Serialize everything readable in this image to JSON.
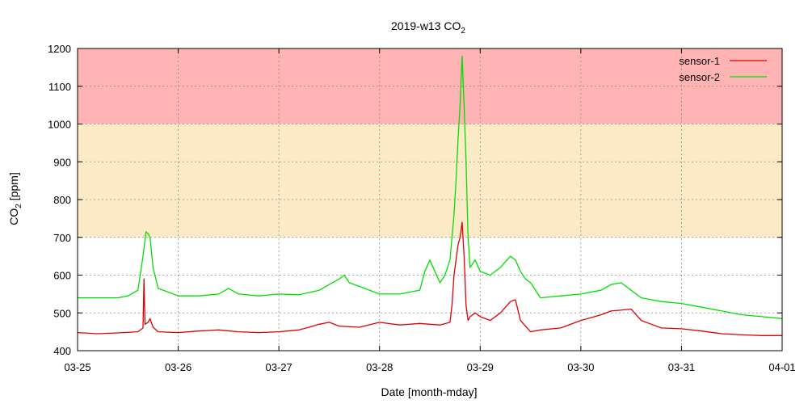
{
  "chart_data": {
    "type": "line",
    "title_main": "2019-w13 CO",
    "title_sub": "2",
    "xlabel": "Date [month-mday]",
    "ylabel_main": "CO",
    "ylabel_sub": "2",
    "ylabel_unit": " [ppm]",
    "ylim": [
      400,
      1200
    ],
    "yticks": [
      400,
      500,
      600,
      700,
      800,
      900,
      1000,
      1100,
      1200
    ],
    "xlim": [
      0,
      7
    ],
    "xticks": [
      {
        "pos": 0,
        "label": "03-25"
      },
      {
        "pos": 1,
        "label": "03-26"
      },
      {
        "pos": 2,
        "label": "03-27"
      },
      {
        "pos": 3,
        "label": "03-28"
      },
      {
        "pos": 4,
        "label": "03-29"
      },
      {
        "pos": 5,
        "label": "03-30"
      },
      {
        "pos": 6,
        "label": "03-31"
      },
      {
        "pos": 7,
        "label": "04-01"
      }
    ],
    "grid": true,
    "legend_position": "top-right",
    "bands": [
      {
        "from": 700,
        "to": 1000,
        "color": "#fdebc8"
      },
      {
        "from": 1000,
        "to": 1200,
        "color": "#ffb3b3"
      }
    ],
    "series": [
      {
        "name": "sensor-1",
        "color": "#e00000",
        "x": [
          0,
          0.2,
          0.4,
          0.6,
          0.65,
          0.66,
          0.67,
          0.7,
          0.72,
          0.75,
          0.8,
          1.0,
          1.2,
          1.4,
          1.6,
          1.8,
          2.0,
          2.2,
          2.3,
          2.4,
          2.5,
          2.6,
          2.8,
          3.0,
          3.2,
          3.4,
          3.5,
          3.6,
          3.7,
          3.72,
          3.74,
          3.76,
          3.78,
          3.8,
          3.82,
          3.84,
          3.86,
          3.88,
          3.9,
          3.95,
          4.0,
          4.1,
          4.2,
          4.3,
          4.35,
          4.4,
          4.5,
          4.6,
          4.8,
          5.0,
          5.2,
          5.3,
          5.5,
          5.6,
          5.7,
          5.8,
          6.0,
          6.2,
          6.4,
          6.6,
          6.8,
          7.0
        ],
        "y": [
          448,
          445,
          447,
          450,
          460,
          590,
          470,
          475,
          485,
          462,
          450,
          448,
          452,
          455,
          450,
          448,
          450,
          455,
          462,
          470,
          475,
          465,
          462,
          475,
          468,
          472,
          470,
          468,
          475,
          520,
          600,
          640,
          680,
          700,
          740,
          650,
          520,
          480,
          490,
          500,
          490,
          480,
          500,
          530,
          535,
          480,
          450,
          455,
          460,
          480,
          495,
          505,
          510,
          480,
          470,
          460,
          458,
          452,
          445,
          442,
          440,
          440
        ]
      },
      {
        "name": "sensor-2",
        "color": "#00e000",
        "x": [
          0,
          0.2,
          0.4,
          0.5,
          0.6,
          0.65,
          0.68,
          0.7,
          0.72,
          0.75,
          0.8,
          1.0,
          1.2,
          1.4,
          1.5,
          1.6,
          1.8,
          2.0,
          2.2,
          2.4,
          2.5,
          2.6,
          2.65,
          2.7,
          2.8,
          3.0,
          3.2,
          3.4,
          3.45,
          3.5,
          3.6,
          3.65,
          3.7,
          3.72,
          3.74,
          3.76,
          3.78,
          3.8,
          3.82,
          3.84,
          3.86,
          3.88,
          3.9,
          3.95,
          4.0,
          4.1,
          4.2,
          4.3,
          4.35,
          4.4,
          4.45,
          4.5,
          4.6,
          4.8,
          5.0,
          5.2,
          5.3,
          5.4,
          5.5,
          5.6,
          5.7,
          5.8,
          6.0,
          6.2,
          6.4,
          6.6,
          6.8,
          7.0
        ],
        "y": [
          540,
          540,
          540,
          545,
          560,
          650,
          715,
          710,
          700,
          620,
          565,
          545,
          545,
          550,
          565,
          550,
          545,
          550,
          548,
          560,
          575,
          590,
          600,
          580,
          570,
          550,
          550,
          560,
          610,
          640,
          580,
          600,
          640,
          700,
          760,
          850,
          960,
          1050,
          1180,
          1050,
          900,
          700,
          620,
          640,
          610,
          600,
          620,
          650,
          640,
          610,
          590,
          580,
          540,
          545,
          550,
          560,
          575,
          580,
          560,
          540,
          535,
          530,
          525,
          515,
          505,
          495,
          490,
          485
        ]
      }
    ]
  }
}
